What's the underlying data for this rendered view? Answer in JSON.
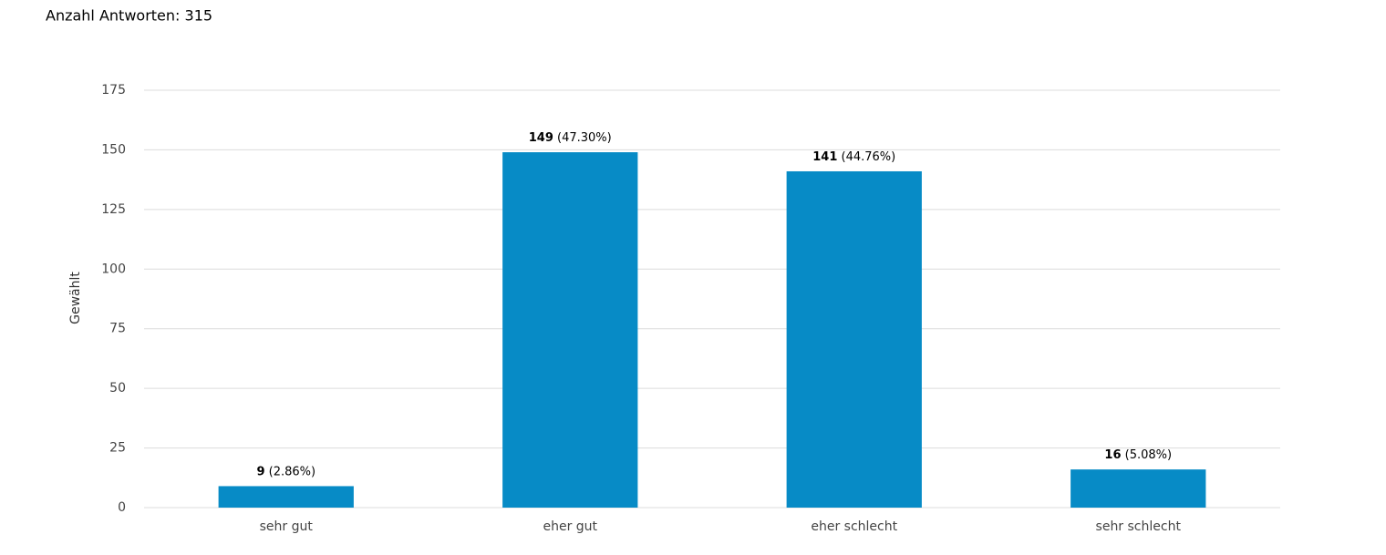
{
  "chart_data": {
    "type": "bar",
    "title": "Anzahl Antworten: 315",
    "y_label": "Gewählt",
    "categories": [
      "sehr gut",
      "eher gut",
      "eher schlecht",
      "sehr schlecht"
    ],
    "values": [
      9,
      149,
      141,
      16
    ],
    "share_labels": [
      "(2.86%)",
      "(47.30%)",
      "(44.76%)",
      "(5.08%)"
    ],
    "color": "#078bc6",
    "ylim": [
      0,
      175
    ],
    "yticks": [
      0,
      25,
      50,
      75,
      100,
      125,
      150,
      175
    ],
    "grid": true
  }
}
